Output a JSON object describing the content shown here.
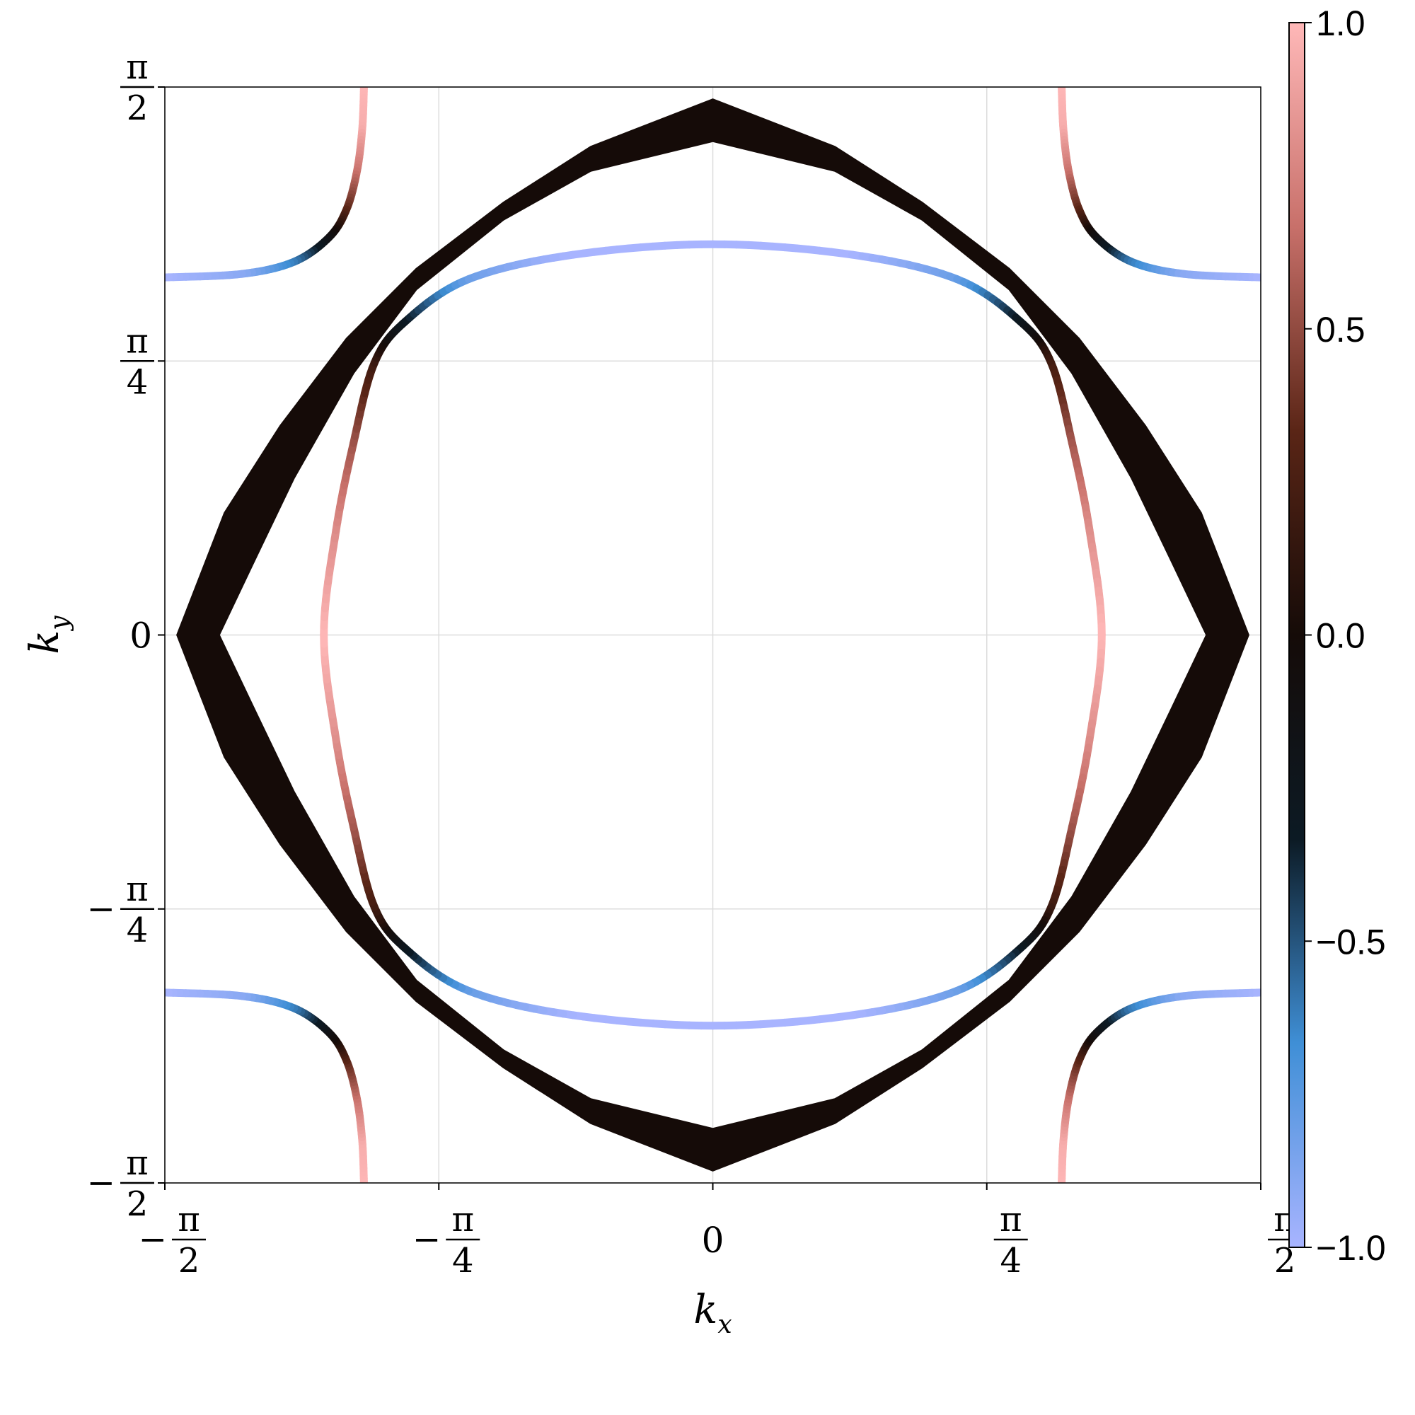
{
  "chart_data": {
    "type": "line",
    "title": "",
    "xlabel": "k",
    "xlabel_sub": "x",
    "ylabel": "k",
    "ylabel_sub": "y",
    "xlim": [
      -1.5708,
      1.5708
    ],
    "ylim": [
      -1.5708,
      1.5708
    ],
    "grid": true,
    "x_ticks": [
      {
        "value": -1.5708,
        "sign": "−",
        "num": "π",
        "den": "2"
      },
      {
        "value": -0.7854,
        "sign": "−",
        "num": "π",
        "den": "4"
      },
      {
        "value": 0,
        "sign": "",
        "num": "0",
        "den": ""
      },
      {
        "value": 0.7854,
        "sign": "",
        "num": "π",
        "den": "4"
      },
      {
        "value": 1.5708,
        "sign": "",
        "num": "π",
        "den": "2"
      }
    ],
    "y_ticks": [
      {
        "value": -1.5708,
        "sign": "−",
        "num": "π",
        "den": "2"
      },
      {
        "value": -0.7854,
        "sign": "−",
        "num": "π",
        "den": "4"
      },
      {
        "value": 0,
        "sign": "",
        "num": "0",
        "den": ""
      },
      {
        "value": 0.7854,
        "sign": "",
        "num": "π",
        "den": "4"
      },
      {
        "value": 1.5708,
        "sign": "",
        "num": "π",
        "den": "2"
      }
    ],
    "colorbar": {
      "range": [
        -1.0,
        1.0
      ],
      "ticks": [
        {
          "value": 1.0,
          "label": "1.0"
        },
        {
          "value": 0.5,
          "label": "0.5"
        },
        {
          "value": 0.0,
          "label": "0.0"
        },
        {
          "value": -0.5,
          "label": "−0.5"
        },
        {
          "value": -1.0,
          "label": "−1.0"
        }
      ],
      "colormap": [
        "#a8b4ff",
        "#3f8fd6",
        "#0c1a24",
        "#150b08",
        "#5a2516",
        "#c8706a",
        "#ffb8b8"
      ]
    },
    "series": [
      {
        "kind": "outer-sheet",
        "color_value": 0.0,
        "points": [
          [
            0.0,
            1.536
          ],
          [
            0.35,
            1.4
          ],
          [
            0.6,
            1.24
          ],
          [
            0.85,
            1.05
          ],
          [
            1.05,
            0.85
          ],
          [
            1.24,
            0.6
          ],
          [
            1.4,
            0.35
          ],
          [
            1.536,
            0.0
          ],
          [
            1.4,
            -0.35
          ],
          [
            1.24,
            -0.6
          ],
          [
            1.05,
            -0.85
          ],
          [
            0.85,
            -1.05
          ],
          [
            0.6,
            -1.24
          ],
          [
            0.35,
            -1.4
          ],
          [
            0.0,
            -1.536
          ],
          [
            -0.35,
            -1.4
          ],
          [
            -0.6,
            -1.24
          ],
          [
            -0.85,
            -1.05
          ],
          [
            -1.05,
            -0.85
          ],
          [
            -1.24,
            -0.6
          ],
          [
            -1.4,
            -0.35
          ],
          [
            -1.536,
            0.0
          ],
          [
            -1.4,
            0.35
          ],
          [
            -1.24,
            0.6
          ],
          [
            -1.05,
            0.85
          ],
          [
            -0.85,
            1.05
          ],
          [
            -0.6,
            1.24
          ],
          [
            -0.35,
            1.4
          ]
        ],
        "inner_points": [
          [
            0.0,
            1.415
          ],
          [
            0.35,
            1.33
          ],
          [
            0.6,
            1.19
          ],
          [
            0.85,
            0.99
          ],
          [
            1.03,
            0.75
          ],
          [
            1.2,
            0.45
          ],
          [
            1.32,
            0.2
          ],
          [
            1.415,
            0.0
          ],
          [
            1.32,
            -0.2
          ],
          [
            1.2,
            -0.45
          ],
          [
            1.03,
            -0.75
          ],
          [
            0.85,
            -0.99
          ],
          [
            0.6,
            -1.19
          ],
          [
            0.35,
            -1.33
          ],
          [
            0.0,
            -1.415
          ],
          [
            -0.35,
            -1.33
          ],
          [
            -0.6,
            -1.19
          ],
          [
            -0.85,
            -0.99
          ],
          [
            -1.03,
            -0.75
          ],
          [
            -1.2,
            -0.45
          ],
          [
            -1.32,
            -0.2
          ],
          [
            -1.415,
            0.0
          ],
          [
            -1.32,
            0.2
          ],
          [
            -1.2,
            0.45
          ],
          [
            -1.03,
            0.75
          ],
          [
            -0.85,
            0.99
          ],
          [
            -0.6,
            1.19
          ],
          [
            -0.35,
            1.33
          ]
        ]
      },
      {
        "kind": "inner-pocket",
        "closed": true,
        "points": [
          {
            "x": 0.0,
            "y": 1.12,
            "c": -1.0
          },
          {
            "x": 0.4,
            "y": 1.09,
            "c": -1.0
          },
          {
            "x": 0.7,
            "y": 1.02,
            "c": -0.8
          },
          {
            "x": 0.88,
            "y": 0.9,
            "c": -0.3
          },
          {
            "x": 0.97,
            "y": 0.78,
            "c": 0.2
          },
          {
            "x": 1.03,
            "y": 0.55,
            "c": 0.55
          },
          {
            "x": 1.08,
            "y": 0.3,
            "c": 0.8
          },
          {
            "x": 1.115,
            "y": 0.0,
            "c": 1.0
          },
          {
            "x": 1.08,
            "y": -0.3,
            "c": 0.8
          },
          {
            "x": 1.03,
            "y": -0.55,
            "c": 0.55
          },
          {
            "x": 0.97,
            "y": -0.78,
            "c": 0.2
          },
          {
            "x": 0.88,
            "y": -0.9,
            "c": -0.3
          },
          {
            "x": 0.7,
            "y": -1.02,
            "c": -0.8
          },
          {
            "x": 0.4,
            "y": -1.09,
            "c": -1.0
          },
          {
            "x": 0.0,
            "y": -1.12,
            "c": -1.0
          },
          {
            "x": -0.4,
            "y": -1.09,
            "c": -1.0
          },
          {
            "x": -0.7,
            "y": -1.02,
            "c": -0.8
          },
          {
            "x": -0.88,
            "y": -0.9,
            "c": -0.3
          },
          {
            "x": -0.97,
            "y": -0.78,
            "c": 0.2
          },
          {
            "x": -1.03,
            "y": -0.55,
            "c": 0.55
          },
          {
            "x": -1.08,
            "y": -0.3,
            "c": 0.8
          },
          {
            "x": -1.115,
            "y": 0.0,
            "c": 1.0
          },
          {
            "x": -1.08,
            "y": 0.3,
            "c": 0.8
          },
          {
            "x": -1.03,
            "y": 0.55,
            "c": 0.55
          },
          {
            "x": -0.97,
            "y": 0.78,
            "c": 0.2
          },
          {
            "x": -0.88,
            "y": 0.9,
            "c": -0.3
          },
          {
            "x": -0.7,
            "y": 1.02,
            "c": -0.8
          },
          {
            "x": -0.4,
            "y": 1.09,
            "c": -1.0
          }
        ]
      },
      {
        "kind": "corner-pocket-top-right",
        "closed": false,
        "points": [
          {
            "x": 1.0,
            "y": 1.5708,
            "c": 1.0
          },
          {
            "x": 1.005,
            "y": 1.45,
            "c": 0.95
          },
          {
            "x": 1.02,
            "y": 1.33,
            "c": 0.7
          },
          {
            "x": 1.05,
            "y": 1.22,
            "c": 0.35
          },
          {
            "x": 1.1,
            "y": 1.14,
            "c": -0.1
          },
          {
            "x": 1.2,
            "y": 1.07,
            "c": -0.6
          },
          {
            "x": 1.35,
            "y": 1.035,
            "c": -0.9
          },
          {
            "x": 1.5708,
            "y": 1.025,
            "c": -1.0
          }
        ]
      },
      {
        "kind": "corner-pocket-top-left",
        "closed": false,
        "points": [
          {
            "x": -1.0,
            "y": 1.5708,
            "c": 1.0
          },
          {
            "x": -1.005,
            "y": 1.45,
            "c": 0.95
          },
          {
            "x": -1.02,
            "y": 1.33,
            "c": 0.7
          },
          {
            "x": -1.05,
            "y": 1.22,
            "c": 0.35
          },
          {
            "x": -1.1,
            "y": 1.14,
            "c": -0.1
          },
          {
            "x": -1.2,
            "y": 1.07,
            "c": -0.6
          },
          {
            "x": -1.35,
            "y": 1.035,
            "c": -0.9
          },
          {
            "x": -1.5708,
            "y": 1.025,
            "c": -1.0
          }
        ]
      },
      {
        "kind": "corner-pocket-bottom-right",
        "closed": false,
        "points": [
          {
            "x": 1.0,
            "y": -1.5708,
            "c": 1.0
          },
          {
            "x": 1.005,
            "y": -1.45,
            "c": 0.95
          },
          {
            "x": 1.02,
            "y": -1.33,
            "c": 0.7
          },
          {
            "x": 1.05,
            "y": -1.22,
            "c": 0.35
          },
          {
            "x": 1.1,
            "y": -1.14,
            "c": -0.1
          },
          {
            "x": 1.2,
            "y": -1.07,
            "c": -0.6
          },
          {
            "x": 1.35,
            "y": -1.035,
            "c": -0.9
          },
          {
            "x": 1.5708,
            "y": -1.025,
            "c": -1.0
          }
        ]
      },
      {
        "kind": "corner-pocket-bottom-left",
        "closed": false,
        "points": [
          {
            "x": -1.0,
            "y": -1.5708,
            "c": 1.0
          },
          {
            "x": -1.005,
            "y": -1.45,
            "c": 0.95
          },
          {
            "x": -1.02,
            "y": -1.33,
            "c": 0.7
          },
          {
            "x": -1.05,
            "y": -1.22,
            "c": 0.35
          },
          {
            "x": -1.1,
            "y": -1.14,
            "c": -0.1
          },
          {
            "x": -1.2,
            "y": -1.07,
            "c": -0.6
          },
          {
            "x": -1.35,
            "y": -1.035,
            "c": -0.9
          },
          {
            "x": -1.5708,
            "y": -1.025,
            "c": -1.0
          }
        ]
      }
    ]
  }
}
